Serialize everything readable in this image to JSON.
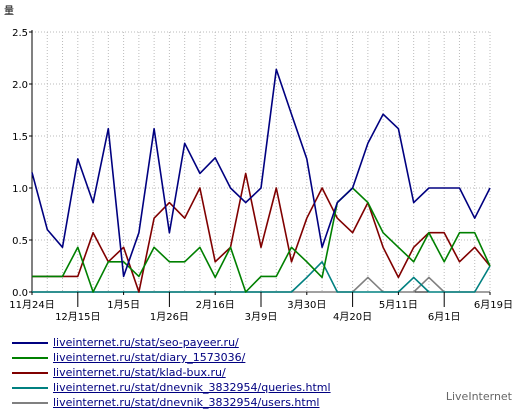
{
  "chart_data": {
    "type": "line",
    "ylabel": "量",
    "ylim": [
      0,
      2.5
    ],
    "yticks": [
      "0.0",
      "0.5",
      "1.0",
      "1.5",
      "2.0",
      "2.5"
    ],
    "xtick_labels": [
      {
        "i": 0,
        "label": "11月24日",
        "row": 0
      },
      {
        "i": 3,
        "label": "12月15日",
        "row": 1
      },
      {
        "i": 6,
        "label": "1月5日",
        "row": 0
      },
      {
        "i": 9,
        "label": "1月26日",
        "row": 1
      },
      {
        "i": 12,
        "label": "2月16日",
        "row": 0
      },
      {
        "i": 15,
        "label": "3月9日",
        "row": 1
      },
      {
        "i": 18,
        "label": "3月30日",
        "row": 0
      },
      {
        "i": 21,
        "label": "4月20日",
        "row": 1
      },
      {
        "i": 24,
        "label": "5月11日",
        "row": 0
      },
      {
        "i": 27,
        "label": "6月1日",
        "row": 1
      },
      {
        "i": 30,
        "label": "6月19日",
        "row": 0
      }
    ],
    "series": [
      {
        "name": "liveinternet.ru/stat/seo-payeer.ru/",
        "color": "#000080",
        "values": [
          1.15,
          0.6,
          0.43,
          1.28,
          0.86,
          1.57,
          0.15,
          0.57,
          1.57,
          0.57,
          1.43,
          1.14,
          1.29,
          1.0,
          0.86,
          1.0,
          2.14,
          1.71,
          1.28,
          0.43,
          0.86,
          1.0,
          1.43,
          1.71,
          1.57,
          0.86,
          1.0,
          1.0,
          1.0,
          0.71,
          1.0
        ]
      },
      {
        "name": "liveinternet.ru/stat/diary_1573036/",
        "color": "#008000",
        "values": [
          0.15,
          0.15,
          0.15,
          0.43,
          0.0,
          0.29,
          0.29,
          0.15,
          0.43,
          0.29,
          0.29,
          0.43,
          0.14,
          0.43,
          0.0,
          0.15,
          0.15,
          0.43,
          0.29,
          0.14,
          0.86,
          1.0,
          0.86,
          0.57,
          0.43,
          0.29,
          0.57,
          0.29,
          0.57,
          0.57,
          0.25
        ]
      },
      {
        "name": "liveinternet.ru/stat/klad-bux.ru/",
        "color": "#800000",
        "values": [
          0.15,
          0.15,
          0.15,
          0.15,
          0.57,
          0.29,
          0.43,
          0.0,
          0.71,
          0.86,
          0.71,
          1.0,
          0.29,
          0.43,
          1.14,
          0.43,
          1.0,
          0.29,
          0.71,
          1.0,
          0.71,
          0.57,
          0.86,
          0.43,
          0.14,
          0.43,
          0.57,
          0.57,
          0.29,
          0.43,
          0.25
        ]
      },
      {
        "name": "liveinternet.ru/stat/dnevnik_3832954/queries.html",
        "color": "#008080",
        "values": [
          0,
          0,
          0,
          0,
          0,
          0,
          0,
          0,
          0,
          0,
          0,
          0,
          0,
          0,
          0,
          0,
          0,
          0,
          0.14,
          0.29,
          0,
          0,
          0,
          0,
          0,
          0.14,
          0,
          0,
          0,
          0,
          0.25
        ]
      },
      {
        "name": "liveinternet.ru/stat/dnevnik_3832954/users.html",
        "color": "#808080",
        "values": [
          0,
          0,
          0,
          0,
          0,
          0,
          0,
          0,
          0,
          0,
          0,
          0,
          0,
          0,
          0,
          0,
          0,
          0,
          0,
          0,
          0,
          0,
          0.14,
          0,
          0,
          0,
          0.14,
          0,
          0,
          0,
          0
        ]
      }
    ]
  },
  "brand": "LiveInternet"
}
